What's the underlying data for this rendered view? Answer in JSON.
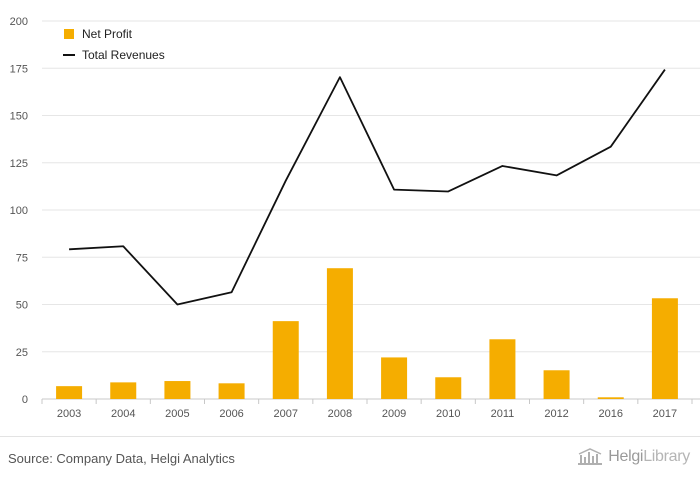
{
  "chart_data": {
    "type": "bar+line",
    "categories": [
      "2003",
      "2004",
      "2005",
      "2006",
      "2007",
      "2008",
      "2009",
      "2010",
      "2011",
      "2012",
      "2016",
      "2017"
    ],
    "series": [
      {
        "name": "Net Profit",
        "type": "bar",
        "color": "#f5ad00",
        "values": [
          6.8,
          8.8,
          9.5,
          8.3,
          41.2,
          69.2,
          22.0,
          11.5,
          31.6,
          15.2,
          0.9,
          53.3
        ]
      },
      {
        "name": "Total Revenues",
        "type": "line",
        "color": "#111111",
        "values": [
          79.2,
          80.8,
          50.0,
          56.5,
          115.5,
          170.3,
          110.8,
          109.8,
          123.3,
          118.3,
          133.5,
          174.3
        ]
      }
    ],
    "yticks": [
      "0",
      "25",
      "50",
      "75",
      "100",
      "125",
      "150",
      "175",
      "200"
    ],
    "ylim": [
      0,
      200
    ],
    "grid": true,
    "legend_position": "top-left"
  },
  "footer": {
    "source": "Source: Company Data, Helgi Analytics",
    "brand_main": "Helgi",
    "brand_sub": "Library"
  }
}
